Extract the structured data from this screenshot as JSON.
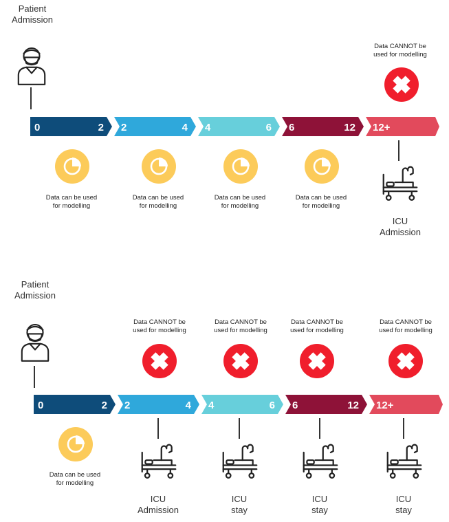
{
  "colors": {
    "seg_0_2": "#0e4c7a",
    "seg_2_4": "#2fa8db",
    "seg_4_6": "#67cfdb",
    "seg_6_12": "#8e1238",
    "seg_12_plus": "#e24a5c",
    "usable_badge": "#fccb5a",
    "cannot_badge": "#f01e2c"
  },
  "scenario_1": {
    "patient_label": "Patient\nAdmission",
    "timeline": [
      {
        "start": "0",
        "end": "2"
      },
      {
        "start": "2",
        "end": "4"
      },
      {
        "start": "4",
        "end": "6"
      },
      {
        "start": "6",
        "end": "12"
      },
      {
        "start": "12+",
        "end": ""
      }
    ],
    "usable_notes": [
      "Data can be used\nfor modelling",
      "Data can be used\nfor modelling",
      "Data can be used\nfor modelling",
      "Data can be used\nfor modelling"
    ],
    "cannot_notes": [
      "Data CANNOT  be\nused for modelling"
    ],
    "icu_labels": [
      "ICU\nAdmission"
    ]
  },
  "scenario_2": {
    "patient_label": "Patient\nAdmission",
    "timeline": [
      {
        "start": "0",
        "end": "2"
      },
      {
        "start": "2",
        "end": "4"
      },
      {
        "start": "4",
        "end": "6"
      },
      {
        "start": "6",
        "end": "12"
      },
      {
        "start": "12+",
        "end": ""
      }
    ],
    "usable_notes": [
      "Data can be used\nfor modelling"
    ],
    "cannot_notes": [
      "Data CANNOT  be\nused for modelling",
      "Data CANNOT  be\nused for modelling",
      "Data CANNOT  be\nused for modelling",
      "Data CANNOT  be\nused for modelling"
    ],
    "icu_labels": [
      "ICU\nAdmission",
      "ICU\nstay",
      "ICU\nstay",
      "ICU\nstay"
    ]
  },
  "icons": {
    "patient": "patient-with-mask-icon",
    "usable": "pie-chart-icon",
    "cannot": "cross-icon",
    "icu": "hospital-bed-icon"
  }
}
